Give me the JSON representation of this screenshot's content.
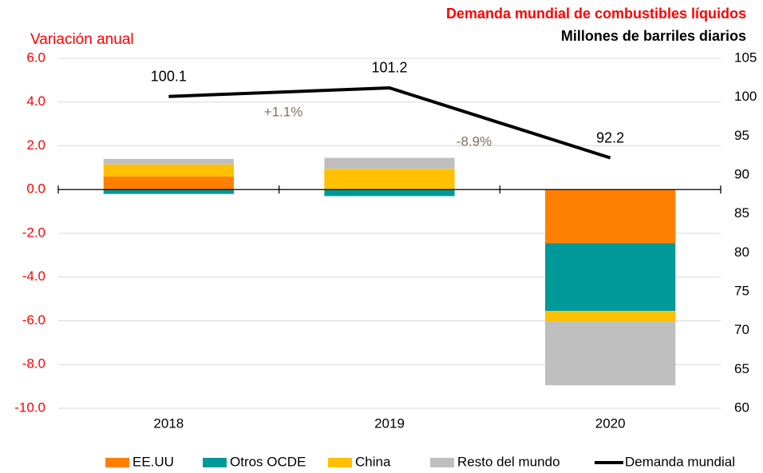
{
  "chart_data": {
    "type": "bar",
    "title": "Demanda mundial de combustibles líquidos",
    "subtitle": "Millones de barriles diarios",
    "y_label": "Variación anual",
    "stacked": true,
    "categories": [
      "2018",
      "2019",
      "2020"
    ],
    "series": [
      {
        "name": "EE.UU",
        "color": "#ff8000",
        "values": [
          0.6,
          0.0,
          -2.45
        ]
      },
      {
        "name": "Otros OCDE",
        "color": "#009999",
        "values": [
          -0.2,
          -0.3,
          -3.1
        ]
      },
      {
        "name": "China",
        "color": "#ffc000",
        "values": [
          0.55,
          0.95,
          -0.47
        ]
      },
      {
        "name": "Resto del mundo",
        "color": "#bfbfbf",
        "values": [
          0.25,
          0.5,
          -2.93
        ]
      },
      {
        "name": "Demanda mundial",
        "color": "#000000",
        "type": "line",
        "axis": "y2",
        "values": [
          100.1,
          101.2,
          92.2
        ]
      }
    ],
    "annotations": [
      "+1.1%",
      "-8.9%"
    ],
    "ylim": [
      -10,
      6
    ],
    "yticks": [
      {
        "value": -10,
        "label": "-10.0"
      },
      {
        "value": -8,
        "label": "-8.0"
      },
      {
        "value": -6,
        "label": "-6.0"
      },
      {
        "value": -4,
        "label": "-4.0"
      },
      {
        "value": -2,
        "label": "-2.0"
      },
      {
        "value": 0,
        "label": "0.0"
      },
      {
        "value": 2,
        "label": "2.0"
      },
      {
        "value": 4,
        "label": "4.0"
      },
      {
        "value": 6,
        "label": "6.0"
      }
    ],
    "y2lim": [
      60,
      105
    ],
    "y2ticks": [
      60,
      65,
      70,
      75,
      80,
      85,
      90,
      95,
      100,
      105
    ],
    "grid": true,
    "legend": "bottom"
  }
}
